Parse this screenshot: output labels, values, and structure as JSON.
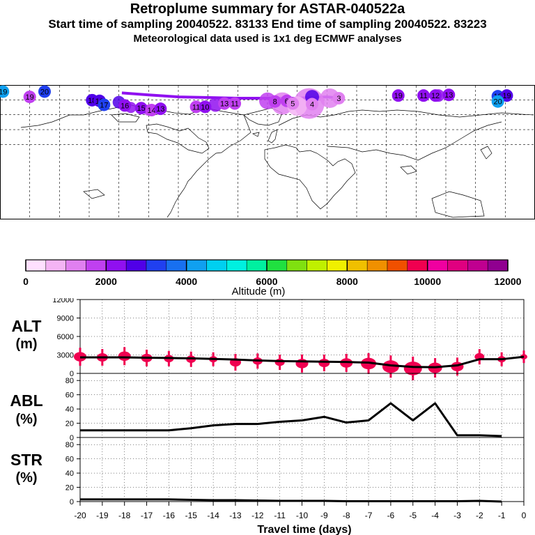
{
  "header": {
    "title": "Retroplume summary for ASTAR-040522a",
    "subtitle": "Start time of sampling 20040522. 83133     End time of sampling 20040522. 83223",
    "met_line": "Meteorological data used is 1x1 deg ECMWF analyses"
  },
  "colors": {
    "scale": [
      "#ffe0ff",
      "#f4b4f4",
      "#e080f0",
      "#c040f0",
      "#9010f0",
      "#5000e8",
      "#2040f0",
      "#1870f0",
      "#10a0f0",
      "#00d0f0",
      "#00f0e0",
      "#00f0a0",
      "#20e040",
      "#80e010",
      "#c0f000",
      "#f0f000",
      "#f0c000",
      "#f09000",
      "#f05000",
      "#f00050",
      "#f000a0",
      "#e00080",
      "#c00090",
      "#900090"
    ],
    "markers": "#f00050",
    "line": "#000000"
  },
  "map": {
    "labels": [
      {
        "text": "20",
        "lon": -150,
        "lat": 80,
        "color": "#2040f0"
      },
      {
        "text": "19",
        "lon": -160,
        "lat": 72,
        "color": "#c040f0"
      },
      {
        "text": "18",
        "lon": -118,
        "lat": 67,
        "color": "#5000e8"
      },
      {
        "text": "18",
        "lon": -113,
        "lat": 66,
        "color": "#5000e8"
      },
      {
        "text": "17",
        "lon": -110,
        "lat": 60,
        "color": "#2040f0"
      },
      {
        "text": "16",
        "lon": -96,
        "lat": 59,
        "color": "#9010f0"
      },
      {
        "text": "15",
        "lon": -85,
        "lat": 55,
        "color": "#9010f0"
      },
      {
        "text": "14",
        "lon": -78,
        "lat": 52,
        "color": "#c040f0"
      },
      {
        "text": "13",
        "lon": -72,
        "lat": 54,
        "color": "#9010f0"
      },
      {
        "text": "11",
        "lon": -48,
        "lat": 57,
        "color": "#c040f0"
      },
      {
        "text": "10",
        "lon": -42,
        "lat": 57,
        "color": "#9010f0"
      },
      {
        "text": "13",
        "lon": -29,
        "lat": 62,
        "color": "#c040f0"
      },
      {
        "text": "11",
        "lon": -22,
        "lat": 62,
        "color": "#c040f0"
      },
      {
        "text": "8",
        "lon": 5,
        "lat": 65,
        "color": "#c040f0"
      },
      {
        "text": "6",
        "lon": 13,
        "lat": 66,
        "color": "#c040f0"
      },
      {
        "text": "5",
        "lon": 17,
        "lat": 62,
        "color": "#e080f0"
      },
      {
        "text": "4",
        "lon": 30,
        "lat": 61,
        "color": "#e080f0"
      },
      {
        "text": "3",
        "lon": 48,
        "lat": 70,
        "color": "#e080f0"
      },
      {
        "text": "19",
        "lon": 88,
        "lat": 74,
        "color": "#9010f0"
      },
      {
        "text": "11",
        "lon": 105,
        "lat": 74,
        "color": "#9010f0"
      },
      {
        "text": "12",
        "lon": 113,
        "lat": 74,
        "color": "#9010f0"
      },
      {
        "text": "13",
        "lon": 122,
        "lat": 75,
        "color": "#9010f0"
      },
      {
        "text": "18",
        "lon": 155,
        "lat": 73,
        "color": "#2040f0"
      },
      {
        "text": "19",
        "lon": 161,
        "lat": 74,
        "color": "#5000e8"
      },
      {
        "text": "20",
        "lon": 155,
        "lat": 65,
        "color": "#10a0f0"
      },
      {
        "text": "19",
        "lon": -178,
        "lat": 80,
        "color": "#10a0f0"
      }
    ]
  },
  "colorbar": {
    "ticks": [
      "0",
      "2000",
      "4000",
      "6000",
      "8000",
      "10000",
      "12000"
    ],
    "label": "Altitude (m)"
  },
  "panels": {
    "alt_label": "ALT",
    "alt_unit": "(m)",
    "abl_label": "ABL",
    "abl_unit": "(%)",
    "str_label": "STR",
    "str_unit": "(%)",
    "xlabel": "Travel time (days)"
  },
  "chart_data": [
    {
      "type": "line",
      "name": "ALT",
      "ylabel": "ALT (m)",
      "ylim": [
        0,
        12000
      ],
      "yticks": [
        "12000",
        "9000",
        "6000",
        "3000",
        "0"
      ],
      "x": [
        -20,
        -19,
        -18,
        -17,
        -16,
        -15,
        -14,
        -13,
        -12,
        -11,
        -10,
        -9,
        -8,
        -7,
        -6,
        -5,
        -4,
        -3,
        -2,
        -1,
        0
      ],
      "values": [
        2600,
        2600,
        2600,
        2550,
        2500,
        2450,
        2350,
        2250,
        2100,
        2000,
        1950,
        1900,
        1850,
        1750,
        1300,
        1050,
        1000,
        1300,
        2300,
        2300,
        2700
      ],
      "markers": [
        {
          "x": -20,
          "y": 2700,
          "s": 9
        },
        {
          "x": -19,
          "y": 2600,
          "s": 8
        },
        {
          "x": -18,
          "y": 2800,
          "s": 9
        },
        {
          "x": -17,
          "y": 2500,
          "s": 8
        },
        {
          "x": -16,
          "y": 2400,
          "s": 7
        },
        {
          "x": -15,
          "y": 2300,
          "s": 7
        },
        {
          "x": -14,
          "y": 2300,
          "s": 6
        },
        {
          "x": -13,
          "y": 1800,
          "s": 8
        },
        {
          "x": -12,
          "y": 2000,
          "s": 7
        },
        {
          "x": -11,
          "y": 1800,
          "s": 7
        },
        {
          "x": -10,
          "y": 1600,
          "s": 9
        },
        {
          "x": -9,
          "y": 1700,
          "s": 8
        },
        {
          "x": -8,
          "y": 1700,
          "s": 9
        },
        {
          "x": -7,
          "y": 1600,
          "s": 11
        },
        {
          "x": -6,
          "y": 1100,
          "s": 12
        },
        {
          "x": -5,
          "y": 800,
          "s": 13
        },
        {
          "x": -4,
          "y": 900,
          "s": 10
        },
        {
          "x": -3,
          "y": 1100,
          "s": 9
        },
        {
          "x": -2,
          "y": 2700,
          "s": 7
        },
        {
          "x": -1,
          "y": 2300,
          "s": 6
        },
        {
          "x": 0,
          "y": 2700,
          "s": 5
        }
      ]
    },
    {
      "type": "line",
      "name": "ABL",
      "ylabel": "ABL (%)",
      "ylim": [
        0,
        90
      ],
      "yticks": [
        "80",
        "60",
        "40",
        "20",
        "0"
      ],
      "x": [
        -20,
        -19,
        -18,
        -17,
        -16,
        -15,
        -14,
        -13,
        -12,
        -11,
        -10,
        -9,
        -8,
        -7,
        -6,
        -5,
        -4,
        -3,
        -2,
        -1
      ],
      "values": [
        10,
        10,
        10,
        10,
        10,
        13,
        17,
        19,
        19,
        22,
        24,
        29,
        21,
        24,
        48,
        24,
        48,
        3,
        3,
        2
      ]
    },
    {
      "type": "line",
      "name": "STR",
      "ylabel": "STR (%)",
      "ylim": [
        0,
        90
      ],
      "yticks": [
        "80",
        "60",
        "40",
        "20",
        "0"
      ],
      "x": [
        -20,
        -19,
        -18,
        -17,
        -16,
        -15,
        -14,
        -13,
        -12,
        -11,
        -10,
        -9,
        -8,
        -7,
        -6,
        -5,
        -4,
        -3,
        -2,
        -1
      ],
      "values": [
        3,
        3,
        3,
        3,
        3,
        2.5,
        2,
        2,
        1.5,
        1,
        1,
        1,
        0.5,
        0.5,
        0.5,
        0.5,
        0.5,
        0.5,
        1,
        0
      ],
      "xticks": [
        "-20",
        "-19",
        "-18",
        "-17",
        "-16",
        "-15",
        "-14",
        "-13",
        "-12",
        "-11",
        "-10",
        "-9",
        "-8",
        "-7",
        "-6",
        "-5",
        "-4",
        "-3",
        "-2",
        "-1",
        "0"
      ]
    }
  ]
}
